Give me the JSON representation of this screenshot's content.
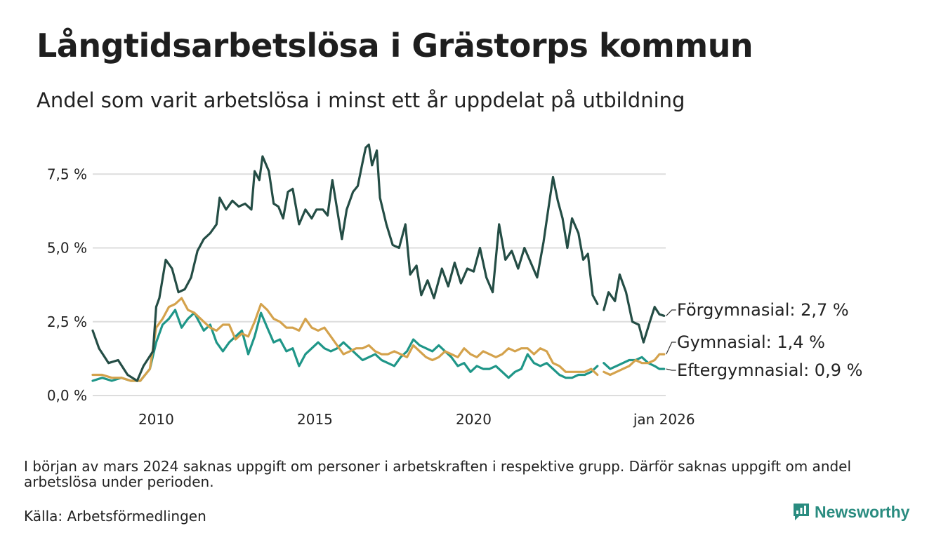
{
  "title": "Långtidsarbetslösa i Grästorps kommun",
  "subtitle": "Andel som varit arbetslösa i minst ett år uppdelat på utbildning",
  "footnote": "I början av mars 2024 saknas uppgift om personer i arbetskraften i respektive grupp. Därför saknas uppgift om andel arbetslösa under perioden.",
  "source": "Källa: Arbetsförmedlingen",
  "brand": "Newsworthy",
  "colors": {
    "forgymnasial": "#244d45",
    "gymnasial": "#d4a24c",
    "eftergymnasial": "#1f9688",
    "grid": "#dddddd",
    "brand": "#2a8c80"
  },
  "chart_data": {
    "type": "line",
    "title": "Långtidsarbetslösa i Grästorps kommun",
    "xlabel": "",
    "ylabel": "",
    "xlim": [
      2008.0,
      2026.05
    ],
    "ylim": [
      0,
      8.6
    ],
    "y_ticks": [
      0,
      2.5,
      5.0,
      7.5
    ],
    "y_tick_labels": [
      "0,0 %",
      "2,5 %",
      "5,0 %",
      "7,5 %"
    ],
    "x_ticks": [
      2010,
      2015,
      2020,
      2026.0
    ],
    "x_tick_labels": [
      "2010",
      "2015",
      "2020",
      "jan 2026"
    ],
    "gap": [
      2023.9,
      2024.1
    ],
    "series": [
      {
        "name": "Förgymnasial",
        "label": "Förgymnasial: 2,7 %",
        "color": "#244d45",
        "points": [
          [
            2008.0,
            2.2
          ],
          [
            2008.2,
            1.6
          ],
          [
            2008.5,
            1.1
          ],
          [
            2008.8,
            1.2
          ],
          [
            2009.1,
            0.7
          ],
          [
            2009.4,
            0.5
          ],
          [
            2009.6,
            1.0
          ],
          [
            2009.9,
            1.5
          ],
          [
            2010.0,
            3.0
          ],
          [
            2010.1,
            3.3
          ],
          [
            2010.3,
            4.6
          ],
          [
            2010.5,
            4.3
          ],
          [
            2010.7,
            3.5
          ],
          [
            2010.9,
            3.6
          ],
          [
            2011.1,
            4.0
          ],
          [
            2011.3,
            4.9
          ],
          [
            2011.5,
            5.3
          ],
          [
            2011.7,
            5.5
          ],
          [
            2011.9,
            5.8
          ],
          [
            2012.0,
            6.7
          ],
          [
            2012.2,
            6.3
          ],
          [
            2012.4,
            6.6
          ],
          [
            2012.6,
            6.4
          ],
          [
            2012.8,
            6.5
          ],
          [
            2013.0,
            6.3
          ],
          [
            2013.1,
            7.6
          ],
          [
            2013.25,
            7.3
          ],
          [
            2013.35,
            8.1
          ],
          [
            2013.55,
            7.6
          ],
          [
            2013.7,
            6.5
          ],
          [
            2013.85,
            6.4
          ],
          [
            2014.0,
            6.0
          ],
          [
            2014.15,
            6.9
          ],
          [
            2014.3,
            7.0
          ],
          [
            2014.5,
            5.8
          ],
          [
            2014.7,
            6.3
          ],
          [
            2014.9,
            6.0
          ],
          [
            2015.05,
            6.3
          ],
          [
            2015.25,
            6.3
          ],
          [
            2015.4,
            6.1
          ],
          [
            2015.55,
            7.3
          ],
          [
            2015.7,
            6.3
          ],
          [
            2015.85,
            5.3
          ],
          [
            2016.0,
            6.3
          ],
          [
            2016.2,
            6.9
          ],
          [
            2016.35,
            7.1
          ],
          [
            2016.5,
            7.9
          ],
          [
            2016.6,
            8.4
          ],
          [
            2016.7,
            8.5
          ],
          [
            2016.8,
            7.8
          ],
          [
            2016.95,
            8.3
          ],
          [
            2017.05,
            6.7
          ],
          [
            2017.25,
            5.8
          ],
          [
            2017.45,
            5.1
          ],
          [
            2017.65,
            5.0
          ],
          [
            2017.85,
            5.8
          ],
          [
            2018.0,
            4.1
          ],
          [
            2018.2,
            4.4
          ],
          [
            2018.35,
            3.4
          ],
          [
            2018.55,
            3.9
          ],
          [
            2018.75,
            3.3
          ],
          [
            2019.0,
            4.3
          ],
          [
            2019.2,
            3.7
          ],
          [
            2019.4,
            4.5
          ],
          [
            2019.6,
            3.8
          ],
          [
            2019.8,
            4.3
          ],
          [
            2020.0,
            4.2
          ],
          [
            2020.2,
            5.0
          ],
          [
            2020.4,
            4.0
          ],
          [
            2020.6,
            3.5
          ],
          [
            2020.8,
            5.8
          ],
          [
            2021.0,
            4.6
          ],
          [
            2021.2,
            4.9
          ],
          [
            2021.4,
            4.3
          ],
          [
            2021.6,
            5.0
          ],
          [
            2021.8,
            4.5
          ],
          [
            2022.0,
            4.0
          ],
          [
            2022.2,
            5.2
          ],
          [
            2022.35,
            6.3
          ],
          [
            2022.5,
            7.4
          ],
          [
            2022.65,
            6.6
          ],
          [
            2022.8,
            6.0
          ],
          [
            2022.95,
            5.0
          ],
          [
            2023.1,
            6.0
          ],
          [
            2023.3,
            5.5
          ],
          [
            2023.45,
            4.6
          ],
          [
            2023.6,
            4.8
          ],
          [
            2023.75,
            3.4
          ],
          [
            2023.9,
            3.1
          ],
          [
            2024.1,
            2.9
          ],
          [
            2024.25,
            3.5
          ],
          [
            2024.45,
            3.2
          ],
          [
            2024.6,
            4.1
          ],
          [
            2024.8,
            3.5
          ],
          [
            2025.0,
            2.5
          ],
          [
            2025.2,
            2.4
          ],
          [
            2025.35,
            1.8
          ],
          [
            2025.55,
            2.5
          ],
          [
            2025.7,
            3.0
          ],
          [
            2025.85,
            2.75
          ],
          [
            2026.0,
            2.7
          ]
        ]
      },
      {
        "name": "Gymnasial",
        "label": "Gymnasial: 1,4 %",
        "color": "#d4a24c",
        "points": [
          [
            2008.0,
            0.7
          ],
          [
            2008.3,
            0.7
          ],
          [
            2008.6,
            0.6
          ],
          [
            2008.9,
            0.6
          ],
          [
            2009.2,
            0.5
          ],
          [
            2009.5,
            0.5
          ],
          [
            2009.8,
            0.9
          ],
          [
            2010.0,
            2.3
          ],
          [
            2010.2,
            2.6
          ],
          [
            2010.4,
            3.0
          ],
          [
            2010.6,
            3.1
          ],
          [
            2010.8,
            3.3
          ],
          [
            2011.0,
            2.9
          ],
          [
            2011.2,
            2.8
          ],
          [
            2011.5,
            2.5
          ],
          [
            2011.7,
            2.3
          ],
          [
            2011.9,
            2.2
          ],
          [
            2012.1,
            2.4
          ],
          [
            2012.3,
            2.4
          ],
          [
            2012.5,
            1.9
          ],
          [
            2012.7,
            2.1
          ],
          [
            2012.9,
            2.0
          ],
          [
            2013.1,
            2.5
          ],
          [
            2013.3,
            3.1
          ],
          [
            2013.5,
            2.9
          ],
          [
            2013.7,
            2.6
          ],
          [
            2013.9,
            2.5
          ],
          [
            2014.1,
            2.3
          ],
          [
            2014.3,
            2.3
          ],
          [
            2014.5,
            2.2
          ],
          [
            2014.7,
            2.6
          ],
          [
            2014.9,
            2.3
          ],
          [
            2015.1,
            2.2
          ],
          [
            2015.3,
            2.3
          ],
          [
            2015.5,
            2.0
          ],
          [
            2015.7,
            1.7
          ],
          [
            2015.9,
            1.4
          ],
          [
            2016.1,
            1.5
          ],
          [
            2016.3,
            1.6
          ],
          [
            2016.5,
            1.6
          ],
          [
            2016.7,
            1.7
          ],
          [
            2016.9,
            1.5
          ],
          [
            2017.1,
            1.4
          ],
          [
            2017.3,
            1.4
          ],
          [
            2017.5,
            1.5
          ],
          [
            2017.7,
            1.4
          ],
          [
            2017.9,
            1.3
          ],
          [
            2018.1,
            1.7
          ],
          [
            2018.3,
            1.5
          ],
          [
            2018.5,
            1.3
          ],
          [
            2018.7,
            1.2
          ],
          [
            2018.9,
            1.3
          ],
          [
            2019.1,
            1.5
          ],
          [
            2019.3,
            1.4
          ],
          [
            2019.5,
            1.3
          ],
          [
            2019.7,
            1.6
          ],
          [
            2019.9,
            1.4
          ],
          [
            2020.1,
            1.3
          ],
          [
            2020.3,
            1.5
          ],
          [
            2020.5,
            1.4
          ],
          [
            2020.7,
            1.3
          ],
          [
            2020.9,
            1.4
          ],
          [
            2021.1,
            1.6
          ],
          [
            2021.3,
            1.5
          ],
          [
            2021.5,
            1.6
          ],
          [
            2021.7,
            1.6
          ],
          [
            2021.9,
            1.4
          ],
          [
            2022.1,
            1.6
          ],
          [
            2022.3,
            1.5
          ],
          [
            2022.5,
            1.1
          ],
          [
            2022.7,
            1.0
          ],
          [
            2022.9,
            0.8
          ],
          [
            2023.1,
            0.8
          ],
          [
            2023.3,
            0.8
          ],
          [
            2023.5,
            0.8
          ],
          [
            2023.7,
            0.9
          ],
          [
            2023.9,
            0.7
          ],
          [
            2024.1,
            0.8
          ],
          [
            2024.3,
            0.7
          ],
          [
            2024.5,
            0.8
          ],
          [
            2024.7,
            0.9
          ],
          [
            2024.9,
            1.0
          ],
          [
            2025.1,
            1.2
          ],
          [
            2025.3,
            1.1
          ],
          [
            2025.5,
            1.1
          ],
          [
            2025.7,
            1.2
          ],
          [
            2025.85,
            1.4
          ],
          [
            2026.0,
            1.4
          ]
        ]
      },
      {
        "name": "Eftergymnasial",
        "label": "Eftergymnasial: 0,9 %",
        "color": "#1f9688",
        "points": [
          [
            2008.0,
            0.5
          ],
          [
            2008.3,
            0.6
          ],
          [
            2008.6,
            0.5
          ],
          [
            2008.9,
            0.6
          ],
          [
            2009.2,
            0.5
          ],
          [
            2009.5,
            0.5
          ],
          [
            2009.8,
            0.9
          ],
          [
            2010.0,
            1.8
          ],
          [
            2010.2,
            2.4
          ],
          [
            2010.4,
            2.6
          ],
          [
            2010.6,
            2.9
          ],
          [
            2010.8,
            2.3
          ],
          [
            2011.0,
            2.6
          ],
          [
            2011.2,
            2.8
          ],
          [
            2011.5,
            2.2
          ],
          [
            2011.7,
            2.4
          ],
          [
            2011.9,
            1.8
          ],
          [
            2012.1,
            1.5
          ],
          [
            2012.3,
            1.8
          ],
          [
            2012.5,
            2.0
          ],
          [
            2012.7,
            2.2
          ],
          [
            2012.9,
            1.4
          ],
          [
            2013.1,
            2.0
          ],
          [
            2013.3,
            2.8
          ],
          [
            2013.5,
            2.3
          ],
          [
            2013.7,
            1.8
          ],
          [
            2013.9,
            1.9
          ],
          [
            2014.1,
            1.5
          ],
          [
            2014.3,
            1.6
          ],
          [
            2014.5,
            1.0
          ],
          [
            2014.7,
            1.4
          ],
          [
            2014.9,
            1.6
          ],
          [
            2015.1,
            1.8
          ],
          [
            2015.3,
            1.6
          ],
          [
            2015.5,
            1.5
          ],
          [
            2015.7,
            1.6
          ],
          [
            2015.9,
            1.8
          ],
          [
            2016.1,
            1.6
          ],
          [
            2016.3,
            1.4
          ],
          [
            2016.5,
            1.2
          ],
          [
            2016.7,
            1.3
          ],
          [
            2016.9,
            1.4
          ],
          [
            2017.1,
            1.2
          ],
          [
            2017.3,
            1.1
          ],
          [
            2017.5,
            1.0
          ],
          [
            2017.7,
            1.3
          ],
          [
            2017.9,
            1.5
          ],
          [
            2018.1,
            1.9
          ],
          [
            2018.3,
            1.7
          ],
          [
            2018.5,
            1.6
          ],
          [
            2018.7,
            1.5
          ],
          [
            2018.9,
            1.7
          ],
          [
            2019.1,
            1.5
          ],
          [
            2019.3,
            1.3
          ],
          [
            2019.5,
            1.0
          ],
          [
            2019.7,
            1.1
          ],
          [
            2019.9,
            0.8
          ],
          [
            2020.1,
            1.0
          ],
          [
            2020.3,
            0.9
          ],
          [
            2020.5,
            0.9
          ],
          [
            2020.7,
            1.0
          ],
          [
            2020.9,
            0.8
          ],
          [
            2021.1,
            0.6
          ],
          [
            2021.3,
            0.8
          ],
          [
            2021.5,
            0.9
          ],
          [
            2021.7,
            1.4
          ],
          [
            2021.9,
            1.1
          ],
          [
            2022.1,
            1.0
          ],
          [
            2022.3,
            1.1
          ],
          [
            2022.5,
            0.9
          ],
          [
            2022.7,
            0.7
          ],
          [
            2022.9,
            0.6
          ],
          [
            2023.1,
            0.6
          ],
          [
            2023.3,
            0.7
          ],
          [
            2023.5,
            0.7
          ],
          [
            2023.7,
            0.8
          ],
          [
            2023.9,
            1.0
          ],
          [
            2024.1,
            1.1
          ],
          [
            2024.3,
            0.9
          ],
          [
            2024.5,
            1.0
          ],
          [
            2024.7,
            1.1
          ],
          [
            2024.9,
            1.2
          ],
          [
            2025.1,
            1.2
          ],
          [
            2025.3,
            1.3
          ],
          [
            2025.5,
            1.1
          ],
          [
            2025.7,
            1.0
          ],
          [
            2025.85,
            0.9
          ],
          [
            2026.0,
            0.9
          ]
        ]
      }
    ]
  }
}
